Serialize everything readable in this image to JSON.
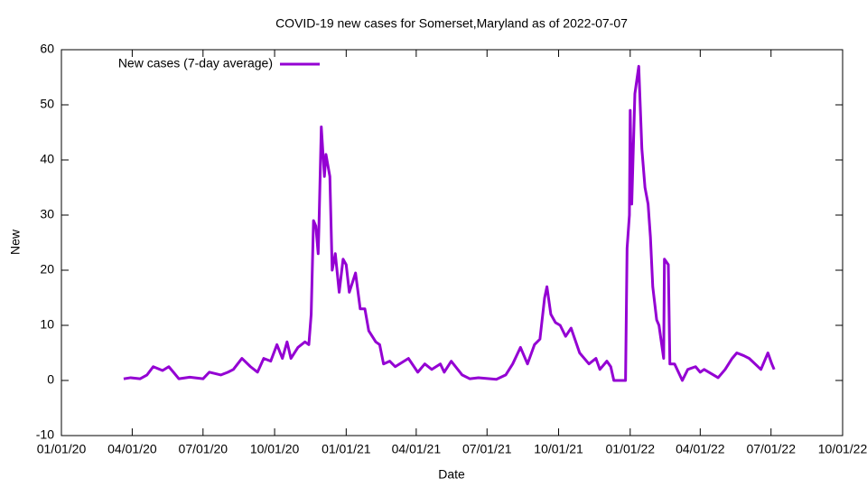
{
  "chart_data": {
    "type": "line",
    "title": "COVID-19 new cases for Somerset,Maryland as of 2022-07-07",
    "xlabel": "Date",
    "ylabel": "New",
    "x": [
      "2020-03-21",
      "2020-03-30",
      "2020-04-11",
      "2020-04-20",
      "2020-04-28",
      "2020-05-10",
      "2020-05-18",
      "2020-05-24",
      "2020-05-31",
      "2020-06-14",
      "2020-07-01",
      "2020-07-09",
      "2020-07-24",
      "2020-08-02",
      "2020-08-09",
      "2020-08-20",
      "2020-08-31",
      "2020-09-09",
      "2020-09-17",
      "2020-09-26",
      "2020-10-04",
      "2020-10-11",
      "2020-10-17",
      "2020-10-22",
      "2020-10-31",
      "2020-11-09",
      "2020-11-14",
      "2020-11-17",
      "2020-11-20",
      "2020-11-23",
      "2020-11-26",
      "2020-11-27",
      "2020-11-30",
      "2020-12-04",
      "2020-12-06",
      "2020-12-11",
      "2020-12-14",
      "2020-12-18",
      "2020-12-23",
      "2020-12-28",
      "2021-01-01",
      "2021-01-05",
      "2021-01-13",
      "2021-01-19",
      "2021-01-25",
      "2021-01-30",
      "2021-02-08",
      "2021-02-13",
      "2021-02-18",
      "2021-02-26",
      "2021-03-05",
      "2021-03-22",
      "2021-04-03",
      "2021-04-12",
      "2021-04-21",
      "2021-05-02",
      "2021-05-07",
      "2021-05-16",
      "2021-05-30",
      "2021-06-09",
      "2021-06-20",
      "2021-07-13",
      "2021-07-25",
      "2021-08-03",
      "2021-08-13",
      "2021-08-22",
      "2021-08-31",
      "2021-09-07",
      "2021-09-13",
      "2021-09-16",
      "2021-09-21",
      "2021-09-27",
      "2021-10-03",
      "2021-10-10",
      "2021-10-17",
      "2021-10-28",
      "2021-11-09",
      "2021-11-18",
      "2021-11-23",
      "2021-12-02",
      "2021-12-07",
      "2021-12-11",
      "2021-12-26",
      "2021-12-28",
      "2021-12-31",
      "2022-01-01",
      "2022-01-03",
      "2022-01-07",
      "2022-01-10",
      "2022-01-12",
      "2022-01-16",
      "2022-01-20",
      "2022-01-24",
      "2022-01-27",
      "2022-01-30",
      "2022-02-04",
      "2022-02-07",
      "2022-02-13",
      "2022-02-14",
      "2022-02-19",
      "2022-02-21",
      "2022-02-27",
      "2022-03-09",
      "2022-03-16",
      "2022-03-26",
      "2022-04-01",
      "2022-04-06",
      "2022-04-24",
      "2022-05-03",
      "2022-05-12",
      "2022-05-18",
      "2022-05-27",
      "2022-06-03",
      "2022-06-18",
      "2022-06-27",
      "2022-07-02",
      "2022-07-05"
    ],
    "series": [
      {
        "name": "New cases (7-day average)",
        "color": "#9400d3",
        "values": [
          0.3,
          0.5,
          0.3,
          1,
          2.5,
          1.8,
          2.5,
          1.5,
          0.3,
          0.6,
          0.3,
          1.5,
          1,
          1.5,
          2,
          4,
          2.5,
          1.5,
          4,
          3.5,
          6.5,
          4,
          7,
          4,
          6,
          7,
          6.5,
          12,
          29,
          28,
          23,
          28,
          46,
          37,
          41,
          37,
          20,
          23,
          16,
          22,
          21,
          16,
          19.5,
          13,
          13,
          9,
          7,
          6.5,
          3,
          3.5,
          2.5,
          4,
          1.5,
          3,
          2,
          3,
          1.5,
          3.5,
          1,
          0.3,
          0.5,
          0.2,
          1,
          3,
          6,
          3,
          6.5,
          7.5,
          15,
          17,
          12,
          10.5,
          10,
          8,
          9.5,
          5,
          3,
          4,
          2,
          3.5,
          2.5,
          0,
          0,
          24,
          30,
          49,
          32,
          52,
          55,
          57,
          42,
          35,
          32,
          26,
          17,
          11,
          10,
          4,
          22,
          21,
          3,
          3,
          0,
          2,
          2.5,
          1.5,
          2,
          0.5,
          2,
          4,
          5,
          4.5,
          4,
          2,
          5,
          3,
          2
        ]
      }
    ],
    "xlim": [
      "2020-01-01",
      "2022-10-01"
    ],
    "xticks": [
      {
        "value": "2020-01-01",
        "label": "01/01/20"
      },
      {
        "value": "2020-04-01",
        "label": "04/01/20"
      },
      {
        "value": "2020-07-01",
        "label": "07/01/20"
      },
      {
        "value": "2020-10-01",
        "label": "10/01/20"
      },
      {
        "value": "2021-01-01",
        "label": "01/01/21"
      },
      {
        "value": "2021-04-01",
        "label": "04/01/21"
      },
      {
        "value": "2021-07-01",
        "label": "07/01/21"
      },
      {
        "value": "2021-10-01",
        "label": "10/01/21"
      },
      {
        "value": "2022-01-01",
        "label": "01/01/22"
      },
      {
        "value": "2022-04-01",
        "label": "04/01/22"
      },
      {
        "value": "2022-07-01",
        "label": "07/01/22"
      },
      {
        "value": "2022-10-01",
        "label": "10/01/22"
      }
    ],
    "ylim": [
      -10,
      60
    ],
    "yticks": [
      -10,
      0,
      10,
      20,
      30,
      40,
      50,
      60
    ],
    "legend": "upper left"
  }
}
